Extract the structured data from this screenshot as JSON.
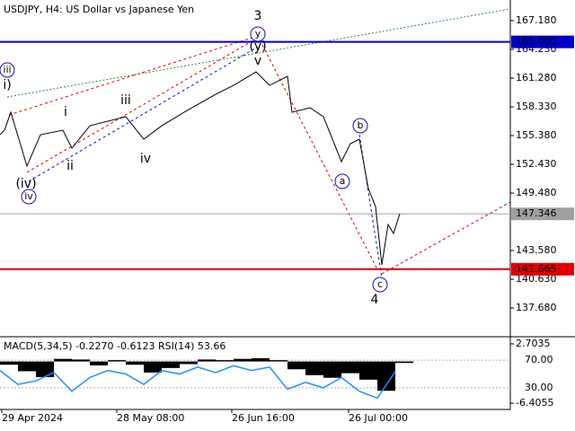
{
  "chart_data": [
    {
      "type": "line",
      "title": "USDJPY, H4:  US Dollar vs Japanese Yen",
      "xlim": [
        0,
        284
      ],
      "ylim": [
        135.01,
        169.3
      ],
      "yticks": [
        {
          "value": 167.18,
          "label": "167.180"
        },
        {
          "value": 164.23,
          "label": "164.230"
        },
        {
          "value": 161.28,
          "label": "161.280"
        },
        {
          "value": 158.33,
          "label": "158.330"
        },
        {
          "value": 155.38,
          "label": "155.380"
        },
        {
          "value": 152.43,
          "label": "152.430"
        },
        {
          "value": 149.48,
          "label": "149.480"
        },
        {
          "value": 143.58,
          "label": "143.580"
        },
        {
          "value": 140.63,
          "label": "140.630"
        },
        {
          "value": 137.68,
          "label": "137.680"
        }
      ],
      "x": [
        0,
        2.5,
        6,
        15,
        22.5,
        35,
        40,
        50,
        70,
        80,
        90,
        102.5,
        120,
        130,
        142.5,
        150,
        160,
        162.5,
        172.5,
        180,
        190,
        195,
        200,
        205,
        209,
        212.5,
        216,
        219,
        222.5
      ],
      "series": [
        {
          "color": "#000000",
          "values": [
            155.47,
            155.93,
            157.78,
            152.25,
            155.47,
            155.93,
            154.09,
            156.39,
            157.32,
            155.01,
            156.39,
            157.78,
            159.62,
            160.54,
            161.92,
            160.54,
            161.46,
            157.78,
            158.24,
            157.32,
            152.71,
            154.55,
            155.01,
            149.94,
            148.1,
            142.11,
            146.25,
            145.33,
            147.35
          ]
        }
      ],
      "levels": [
        {
          "value": 165.0,
          "label": "165.000",
          "color": "#0000cc"
        },
        {
          "value": 141.665,
          "label": "141.665",
          "color": "#e00000"
        },
        {
          "value": 147.346,
          "label": "147.346",
          "color": "#a0a0a0"
        }
      ],
      "annotations": [
        {
          "text": "3",
          "color": "#c83232",
          "circled": false
        },
        {
          "text": "(y)",
          "color": "#e00000",
          "circled": false
        },
        {
          "text": "y",
          "color": "#1010c0",
          "circled": true
        },
        {
          "text": "v",
          "color": "#707070",
          "circled": false
        },
        {
          "text": "iii",
          "color": "#1010c0",
          "circled": true
        },
        {
          "text": "i)",
          "color": "#e00000",
          "circled": false
        },
        {
          "text": "i",
          "color": "#707070",
          "circled": false
        },
        {
          "text": "iii",
          "color": "#707070",
          "circled": false
        },
        {
          "text": "ii",
          "color": "#707070",
          "circled": false
        },
        {
          "text": "iv",
          "color": "#707070",
          "circled": false
        },
        {
          "text": "(iv)",
          "color": "#e00000",
          "circled": false
        },
        {
          "text": "iv",
          "color": "#1010c0",
          "circled": true
        },
        {
          "text": "b",
          "color": "#1010c0",
          "circled": true
        },
        {
          "text": "a",
          "color": "#1010c0",
          "circled": true
        },
        {
          "text": "c",
          "color": "#1010c0",
          "circled": true
        },
        {
          "text": "4",
          "color": "#c83232",
          "circled": false
        }
      ]
    },
    {
      "type": "bar",
      "title": "MACD(5,34,5) -0.2270 -0.6123 RSI(14) 53.66",
      "xlim": [
        0,
        284
      ],
      "xticks": [
        {
          "value": 1,
          "label": "29 Apr 2024"
        },
        {
          "value": 65,
          "label": "28 May 08:00"
        },
        {
          "value": 129,
          "label": "26 Jun 16:00"
        },
        {
          "value": 194,
          "label": "26 Jul 00:00"
        }
      ],
      "ylim": [
        -7.23,
        3.39
      ],
      "yticks": [
        2.7035,
        -6.4055
      ],
      "y2lim": [
        0,
        100
      ],
      "y2ticks": [
        {
          "value": 70,
          "label": "70.00"
        },
        {
          "value": 30,
          "label": "30.00"
        }
      ],
      "x": [
        0,
        10,
        20,
        30,
        40,
        50,
        60,
        70,
        80,
        90,
        100,
        110,
        120,
        130,
        140,
        150,
        160,
        170,
        180,
        190,
        200,
        210,
        220
      ],
      "series": [
        {
          "color": "#000000",
          "style": "bar",
          "values": [
            -0.5,
            -1.5,
            -2.4,
            0.4,
            0.3,
            -0.6,
            0.2,
            -0.5,
            -1.7,
            -1.0,
            -0.4,
            0.3,
            0.2,
            0.4,
            0.5,
            0.2,
            -1.2,
            -2.1,
            -2.5,
            -1.8,
            -2.8,
            -4.5,
            -0.227
          ]
        },
        {
          "color": "#1e90ff",
          "style": "line",
          "axis": "y2",
          "values": [
            55,
            35,
            40,
            52,
            25,
            45,
            55,
            50,
            35,
            55,
            50,
            60,
            52,
            62,
            55,
            60,
            28,
            38,
            30,
            45,
            25,
            15,
            53.66
          ]
        }
      ]
    }
  ]
}
